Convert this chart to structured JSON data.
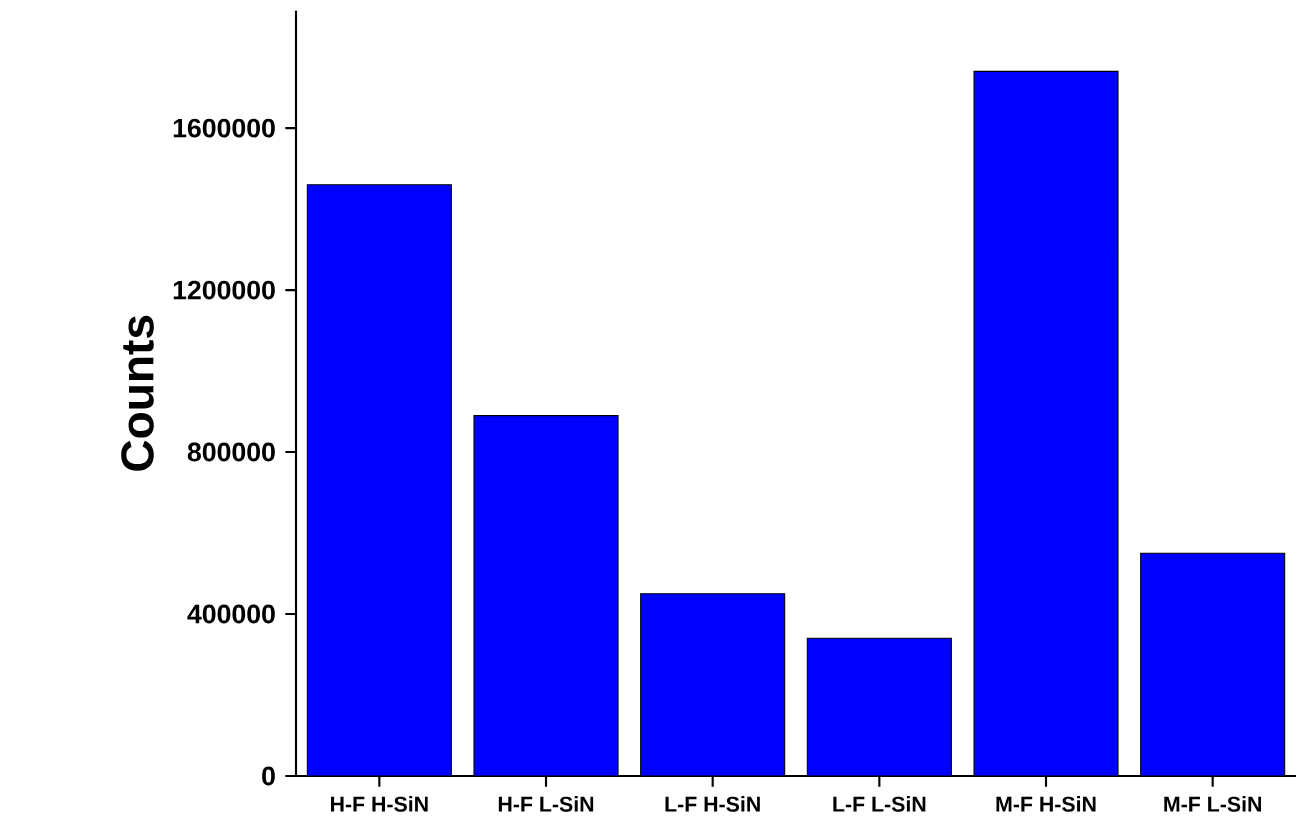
{
  "chart_data": {
    "type": "bar",
    "ylabel": "Counts",
    "categories": [
      "H-F H-SiN",
      "H-F L-SiN",
      "L-F H-SiN",
      "L-F L-SiN",
      "M-F H-SiN",
      "M-F L-SiN"
    ],
    "values": [
      1460000,
      890000,
      450000,
      340000,
      1740000,
      550000
    ],
    "color": "#0000ff",
    "ylim": [
      0,
      1890000
    ],
    "yticks": [
      0,
      400000,
      800000,
      1200000,
      1600000
    ],
    "grid": false
  }
}
